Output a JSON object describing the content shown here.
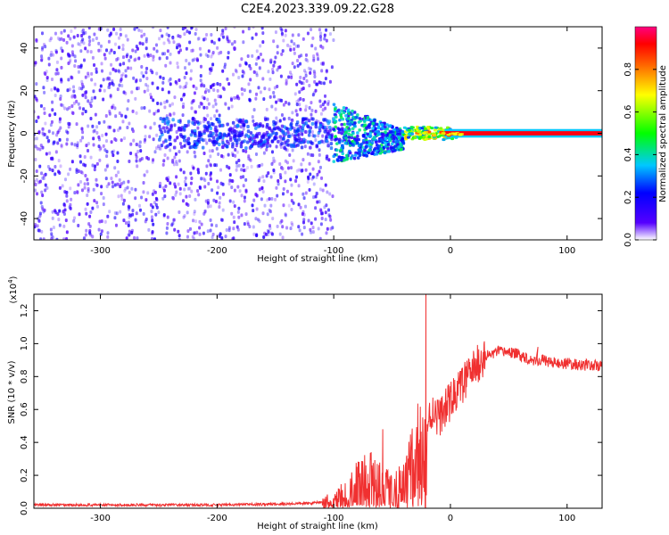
{
  "chart_data": [
    {
      "type": "heatmap",
      "title": "C2E4.2023.339.09.22.G28",
      "xlabel": "Height of straight line (km)",
      "ylabel": "Frequency (Hz)",
      "xlim": [
        -357,
        130
      ],
      "ylim": [
        -50,
        50
      ],
      "xticks": [
        -300,
        -200,
        -100,
        0,
        100
      ],
      "yticks": [
        -40,
        -20,
        0,
        20,
        40
      ],
      "grid": false,
      "colorbar": {
        "label": "Normalized spectral amplitude",
        "range": [
          0,
          1
        ],
        "ticks": [
          0.0,
          0.2,
          0.4,
          0.6,
          0.8
        ],
        "colormap": "rainbow",
        "colors": [
          "#ffffff",
          "#5500ff",
          "#0000ff",
          "#00c8ff",
          "#00ff00",
          "#ffff00",
          "#ff6600",
          "#ff0000",
          "#ff0080"
        ]
      },
      "regions": [
        {
          "x": [
            -357,
            -100
          ],
          "freq_spread_hz": 50,
          "amplitude": 0.15
        },
        {
          "x": [
            -100,
            -40
          ],
          "freq_spread_hz": 12,
          "amplitude": 0.35
        },
        {
          "x": [
            -40,
            0
          ],
          "freq_spread_hz": 3,
          "amplitude": 0.7
        },
        {
          "x": [
            0,
            130
          ],
          "freq_hz": 0,
          "amplitude": 0.9
        }
      ]
    },
    {
      "type": "line",
      "xlabel": "Height of straight line (km)",
      "ylabel": "SNR (10 * v/v)",
      "scale_label": "(x10",
      "scale_exp": "4",
      "scale_close": ")",
      "xlim": [
        -357,
        130
      ],
      "ylim": [
        0,
        1.3
      ],
      "xticks": [
        -300,
        -200,
        -100,
        0,
        100
      ],
      "yticks": [
        "0.0",
        "0.2",
        "0.4",
        "0.6",
        "0.8",
        "1.0",
        "1.2"
      ],
      "grid": false,
      "color": "#f03030",
      "series": [
        {
          "x": [
            -357,
            -300,
            -250,
            -200,
            -150,
            -120,
            -110,
            -100,
            -90,
            -80,
            -70,
            -60,
            -50,
            -40,
            -30,
            -25,
            -20,
            -15,
            -10,
            -5,
            0,
            10,
            20,
            30,
            40,
            50,
            60,
            70,
            80,
            90,
            100,
            110,
            120,
            130
          ],
          "values": [
            0.02,
            0.02,
            0.02,
            0.02,
            0.025,
            0.03,
            0.04,
            0.05,
            0.1,
            0.15,
            0.2,
            0.15,
            0.12,
            0.15,
            0.3,
            0.4,
            0.5,
            0.6,
            0.55,
            0.6,
            0.65,
            0.75,
            0.85,
            0.92,
            0.95,
            0.95,
            0.93,
            0.9,
            0.9,
            0.88,
            0.88,
            0.87,
            0.87,
            0.86
          ]
        }
      ],
      "spikes": [
        {
          "x": -21,
          "value": 1.3
        },
        {
          "x": -58,
          "value": 0.48
        },
        {
          "x": 75,
          "value": 0.98
        }
      ]
    }
  ]
}
